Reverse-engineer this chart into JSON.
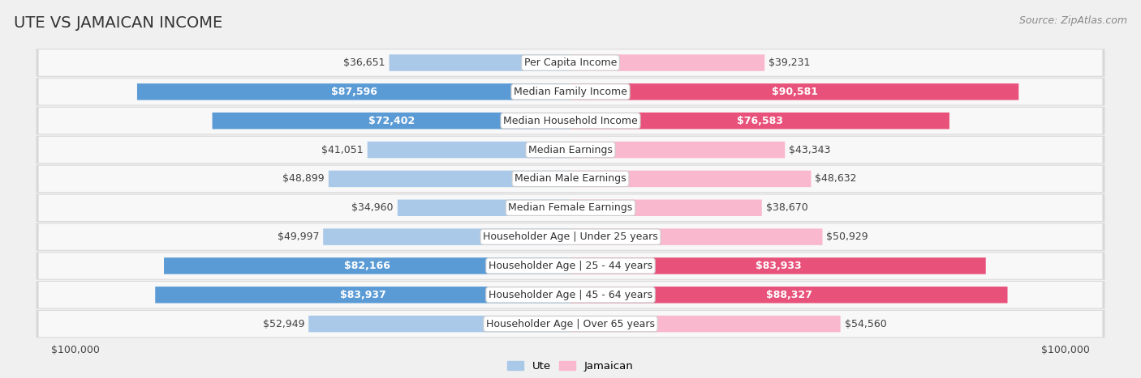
{
  "title": "UTE VS JAMAICAN INCOME",
  "source": "Source: ZipAtlas.com",
  "categories": [
    "Per Capita Income",
    "Median Family Income",
    "Median Household Income",
    "Median Earnings",
    "Median Male Earnings",
    "Median Female Earnings",
    "Householder Age | Under 25 years",
    "Householder Age | 25 - 44 years",
    "Householder Age | 45 - 64 years",
    "Householder Age | Over 65 years"
  ],
  "ute_values": [
    36651,
    87596,
    72402,
    41051,
    48899,
    34960,
    49997,
    82166,
    83937,
    52949
  ],
  "jamaican_values": [
    39231,
    90581,
    76583,
    43343,
    48632,
    38670,
    50929,
    83933,
    88327,
    54560
  ],
  "ute_color_light": "#aac9e8",
  "ute_color_dark": "#5b9bd5",
  "jamaican_color_light": "#f9b8ce",
  "jamaican_color_dark": "#e8527a",
  "label_color_dark_outside": "#404040",
  "label_color_white_inside": "#ffffff",
  "max_value": 100000,
  "background_color": "#f0f0f0",
  "row_bg_outer": "#d8d8d8",
  "row_bg_inner": "#f8f8f8",
  "label_box_color": "#ffffff",
  "label_box_edge": "#cccccc",
  "title_fontsize": 14,
  "source_fontsize": 9,
  "bar_fontsize": 9,
  "category_fontsize": 9,
  "axis_label_fontsize": 9,
  "inside_label_threshold": 55000,
  "legend_label_ute": "Ute",
  "legend_label_jamaican": "Jamaican"
}
